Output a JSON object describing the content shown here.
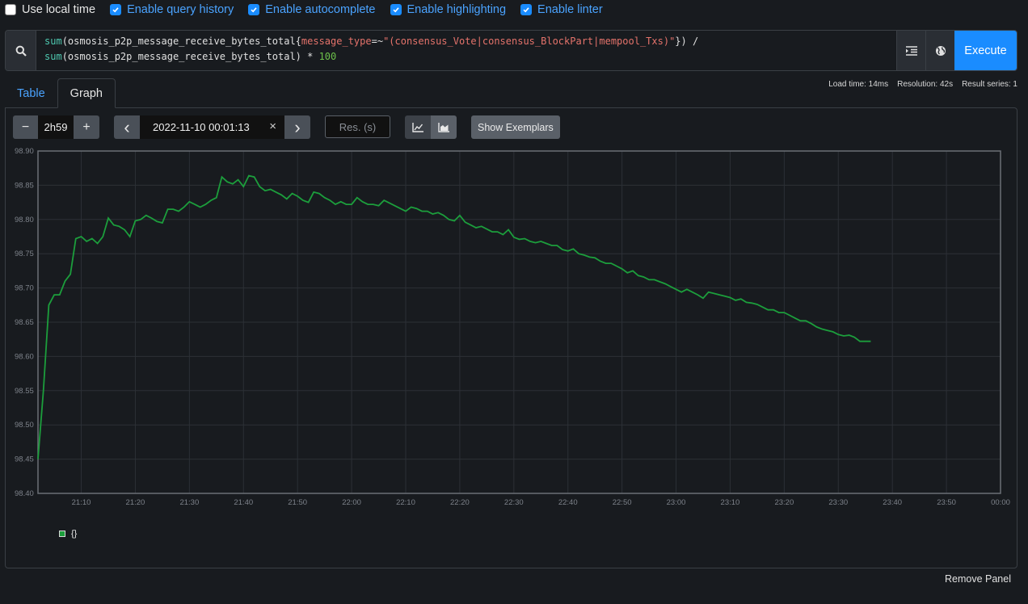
{
  "options": [
    {
      "label": "Use local time",
      "checked": false
    },
    {
      "label": "Enable query history",
      "checked": true
    },
    {
      "label": "Enable autocomplete",
      "checked": true
    },
    {
      "label": "Enable highlighting",
      "checked": true
    },
    {
      "label": "Enable linter",
      "checked": true
    }
  ],
  "query": {
    "line1": {
      "fn": "sum",
      "open": "(osmosis_p2p_message_receive_bytes_total{",
      "label": "message_type",
      "op": "=~",
      "value": "\"(consensus_Vote|consensus_BlockPart|mempool_Txs)\"",
      "close": "}) /"
    },
    "line2": {
      "fn": "sum",
      "body": "(osmosis_p2p_message_receive_bytes_total) * ",
      "num": "100"
    },
    "execute_label": "Execute"
  },
  "tabs": [
    {
      "label": "Table",
      "active": false
    },
    {
      "label": "Graph",
      "active": true
    }
  ],
  "stats": {
    "load_time": "Load time: 14ms",
    "resolution": "Resolution: 42s",
    "result_series": "Result series: 1"
  },
  "controls": {
    "range_minus": "−",
    "range_value": "2h59",
    "range_plus": "+",
    "date_prev": "‹",
    "end_time": "2022-11-10 00:01:13",
    "date_clear": "×",
    "date_next": "›",
    "resolution_placeholder": "Res. (s)",
    "show_exemplars": "Show Exemplars"
  },
  "chart_data": {
    "type": "line",
    "y_ticks": [
      "98.90",
      "98.85",
      "98.80",
      "98.75",
      "98.70",
      "98.65",
      "98.60",
      "98.55",
      "98.50",
      "98.45",
      "98.40"
    ],
    "x_ticks": [
      "21:10",
      "21:20",
      "21:30",
      "21:40",
      "21:50",
      "22:00",
      "22:10",
      "22:20",
      "22:30",
      "22:40",
      "22:50",
      "23:00",
      "23:10",
      "23:20",
      "23:30",
      "23:40",
      "23:50",
      "00:00"
    ],
    "ylim": [
      98.4,
      98.9
    ],
    "xlim": [
      "21:02",
      "00:00"
    ],
    "grid": true,
    "color": "#1c9e3c",
    "series": [
      {
        "name": "{}",
        "points": [
          [
            "21:02",
            98.45
          ],
          [
            "21:03",
            98.55
          ],
          [
            "21:04",
            98.675
          ],
          [
            "21:05",
            98.69
          ],
          [
            "21:06",
            98.69
          ],
          [
            "21:07",
            98.71
          ],
          [
            "21:08",
            98.72
          ],
          [
            "21:09",
            98.772
          ],
          [
            "21:10",
            98.775
          ],
          [
            "21:11",
            98.768
          ],
          [
            "21:12",
            98.772
          ],
          [
            "21:13",
            98.765
          ],
          [
            "21:14",
            98.775
          ],
          [
            "21:15",
            98.802
          ],
          [
            "21:16",
            98.792
          ],
          [
            "21:17",
            98.79
          ],
          [
            "21:18",
            98.785
          ],
          [
            "21:19",
            98.775
          ],
          [
            "21:20",
            98.798
          ],
          [
            "21:21",
            98.8
          ],
          [
            "21:22",
            98.806
          ],
          [
            "21:23",
            98.802
          ],
          [
            "21:24",
            98.797
          ],
          [
            "21:25",
            98.795
          ],
          [
            "21:26",
            98.815
          ],
          [
            "21:27",
            98.815
          ],
          [
            "21:28",
            98.812
          ],
          [
            "21:29",
            98.818
          ],
          [
            "21:30",
            98.826
          ],
          [
            "21:31",
            98.822
          ],
          [
            "21:32",
            98.818
          ],
          [
            "21:33",
            98.822
          ],
          [
            "21:34",
            98.828
          ],
          [
            "21:35",
            98.832
          ],
          [
            "21:36",
            98.862
          ],
          [
            "21:37",
            98.855
          ],
          [
            "21:38",
            98.852
          ],
          [
            "21:39",
            98.858
          ],
          [
            "21:40",
            98.848
          ],
          [
            "21:41",
            98.864
          ],
          [
            "21:42",
            98.862
          ],
          [
            "21:43",
            98.848
          ],
          [
            "21:44",
            98.842
          ],
          [
            "21:45",
            98.844
          ],
          [
            "21:46",
            98.84
          ],
          [
            "21:47",
            98.836
          ],
          [
            "21:48",
            98.83
          ],
          [
            "21:49",
            98.838
          ],
          [
            "21:50",
            98.834
          ],
          [
            "21:51",
            98.828
          ],
          [
            "21:52",
            98.825
          ],
          [
            "21:53",
            98.84
          ],
          [
            "21:54",
            98.838
          ],
          [
            "21:55",
            98.832
          ],
          [
            "21:56",
            98.828
          ],
          [
            "21:57",
            98.822
          ],
          [
            "21:58",
            98.826
          ],
          [
            "21:59",
            98.822
          ],
          [
            "22:00",
            98.822
          ],
          [
            "22:01",
            98.832
          ],
          [
            "22:02",
            98.826
          ],
          [
            "22:03",
            98.822
          ],
          [
            "22:04",
            98.822
          ],
          [
            "22:05",
            98.82
          ],
          [
            "22:06",
            98.828
          ],
          [
            "22:07",
            98.824
          ],
          [
            "22:08",
            98.82
          ],
          [
            "22:09",
            98.816
          ],
          [
            "22:10",
            98.812
          ],
          [
            "22:11",
            98.818
          ],
          [
            "22:12",
            98.816
          ],
          [
            "22:13",
            98.812
          ],
          [
            "22:14",
            98.812
          ],
          [
            "22:15",
            98.808
          ],
          [
            "22:16",
            98.81
          ],
          [
            "22:17",
            98.806
          ],
          [
            "22:18",
            98.8
          ],
          [
            "22:19",
            98.798
          ],
          [
            "22:20",
            98.806
          ],
          [
            "22:21",
            98.796
          ],
          [
            "22:22",
            98.792
          ],
          [
            "22:23",
            98.788
          ],
          [
            "22:24",
            98.79
          ],
          [
            "22:25",
            98.786
          ],
          [
            "22:26",
            98.782
          ],
          [
            "22:27",
            98.782
          ],
          [
            "22:28",
            98.778
          ],
          [
            "22:29",
            98.785
          ],
          [
            "22:30",
            98.774
          ],
          [
            "22:31",
            98.771
          ],
          [
            "22:32",
            98.772
          ],
          [
            "22:33",
            98.768
          ],
          [
            "22:34",
            98.766
          ],
          [
            "22:35",
            98.768
          ],
          [
            "22:36",
            98.765
          ],
          [
            "22:37",
            98.762
          ],
          [
            "22:38",
            98.762
          ],
          [
            "22:39",
            98.756
          ],
          [
            "22:40",
            98.754
          ],
          [
            "22:41",
            98.757
          ],
          [
            "22:42",
            98.75
          ],
          [
            "22:43",
            98.748
          ],
          [
            "22:44",
            98.745
          ],
          [
            "22:45",
            98.744
          ],
          [
            "22:46",
            98.739
          ],
          [
            "22:47",
            98.736
          ],
          [
            "22:48",
            98.736
          ],
          [
            "22:49",
            98.732
          ],
          [
            "22:50",
            98.728
          ],
          [
            "22:51",
            98.722
          ],
          [
            "22:52",
            98.725
          ],
          [
            "22:53",
            98.718
          ],
          [
            "22:54",
            98.716
          ],
          [
            "22:55",
            98.712
          ],
          [
            "22:56",
            98.712
          ],
          [
            "22:57",
            98.709
          ],
          [
            "22:58",
            98.706
          ],
          [
            "22:59",
            98.702
          ],
          [
            "23:00",
            98.698
          ],
          [
            "23:01",
            98.694
          ],
          [
            "23:02",
            98.698
          ],
          [
            "23:03",
            98.694
          ],
          [
            "23:04",
            98.69
          ],
          [
            "23:05",
            98.685
          ],
          [
            "23:06",
            98.694
          ],
          [
            "23:07",
            98.692
          ],
          [
            "23:08",
            98.69
          ],
          [
            "23:09",
            98.688
          ],
          [
            "23:10",
            98.686
          ],
          [
            "23:11",
            98.682
          ],
          [
            "23:12",
            98.684
          ],
          [
            "23:13",
            98.679
          ],
          [
            "23:14",
            98.678
          ],
          [
            "23:15",
            98.676
          ],
          [
            "23:16",
            98.672
          ],
          [
            "23:17",
            98.668
          ],
          [
            "23:18",
            98.668
          ],
          [
            "23:19",
            98.664
          ],
          [
            "23:20",
            98.664
          ],
          [
            "23:21",
            98.66
          ],
          [
            "23:22",
            98.656
          ],
          [
            "23:23",
            98.652
          ],
          [
            "23:24",
            98.652
          ],
          [
            "23:25",
            98.648
          ],
          [
            "23:26",
            98.643
          ],
          [
            "23:27",
            98.64
          ],
          [
            "23:28",
            98.638
          ],
          [
            "23:29",
            98.636
          ],
          [
            "23:30",
            98.632
          ],
          [
            "23:31",
            98.63
          ],
          [
            "23:32",
            98.631
          ],
          [
            "23:33",
            98.628
          ],
          [
            "23:34",
            98.622
          ],
          [
            "23:35",
            98.622
          ],
          [
            "23:36",
            98.622
          ]
        ]
      }
    ]
  },
  "legend": [
    {
      "label": "{}",
      "color": "#1c9e3c"
    }
  ],
  "remove_panel": "Remove Panel"
}
